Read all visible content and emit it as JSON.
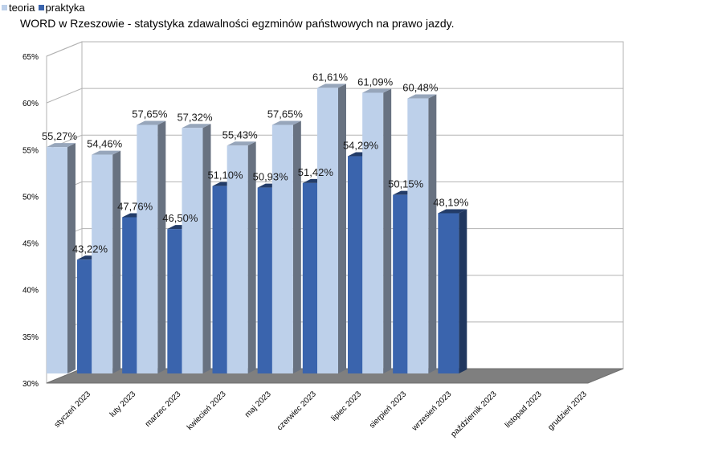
{
  "legend": [
    {
      "name": "teoria",
      "color": "#bdd0ea"
    },
    {
      "name": "praktyka",
      "color": "#3a64ad"
    }
  ],
  "chart_data": {
    "type": "bar",
    "title": "WORD w Rzeszowie - statystyka zdawalności egzminów państwowych na prawo jazdy.",
    "xlabel": "",
    "ylabel": "",
    "ylim": [
      30,
      65
    ],
    "yticks": [
      "30%",
      "35%",
      "40%",
      "45%",
      "50%",
      "55%",
      "60%",
      "65%"
    ],
    "grid": true,
    "legend_position": "top-left",
    "categories": [
      "styczeń 2023",
      "luty 2023",
      "marzec 2023",
      "kwiecień 2023",
      "maj 2023",
      "czerwiec 2023",
      "lipiec 2023",
      "sierpień 2023",
      "wrzesień 2023",
      "październik 2023",
      "listopad 2023",
      "grudzień 2023"
    ],
    "series": [
      {
        "name": "teoria",
        "color": "#bdd0ea",
        "values": [
          55.27,
          54.46,
          57.65,
          57.32,
          55.43,
          57.65,
          61.61,
          61.09,
          60.48,
          null,
          null,
          null
        ],
        "labels": [
          "55,27%",
          "54,46%",
          "57,65%",
          "57,32%",
          "55,43%",
          "57,65%",
          "61,61%",
          "61,09%",
          "60,48%",
          "",
          "",
          ""
        ]
      },
      {
        "name": "praktyka",
        "color": "#3a64ad",
        "values": [
          43.22,
          47.76,
          46.5,
          51.1,
          50.93,
          51.42,
          54.29,
          50.15,
          48.19,
          null,
          null,
          null
        ],
        "labels": [
          "43,22%",
          "47,76%",
          "46,50%",
          "51,10%",
          "50,93%",
          "51,42%",
          "54,29%",
          "50,15%",
          "48,19%",
          "",
          "",
          ""
        ]
      }
    ]
  }
}
